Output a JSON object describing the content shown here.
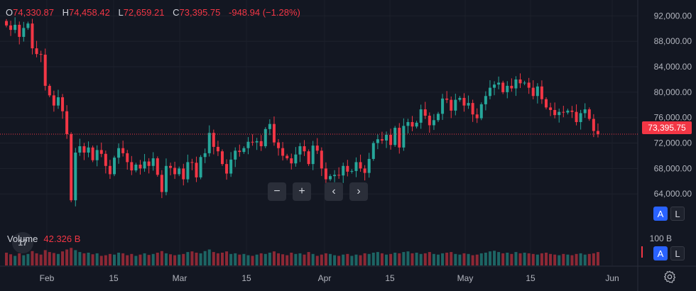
{
  "legend": {
    "o_label": "O",
    "o_value": "74,330.87",
    "h_label": "H",
    "h_value": "74,458.42",
    "l_label": "L",
    "l_value": "72,659.21",
    "c_label": "C",
    "c_value": "73,395.75",
    "change": "-948.94 (−1.28%)"
  },
  "volume_legend": {
    "label": "Volume",
    "value": "42.326 B"
  },
  "last_price": "73,395.75",
  "volume_axis_label": "100 B",
  "nav": {
    "zoom_out": "−",
    "zoom_in": "+",
    "scroll_left": "‹",
    "scroll_right": "›"
  },
  "scale_buttons": {
    "auto": "A",
    "log": "L"
  },
  "logo_text": "17",
  "icons": {
    "settings": "gear-icon"
  },
  "colors": {
    "up": "#26a69a",
    "down": "#f23645",
    "background": "#131722"
  },
  "chart_data": {
    "type": "candlestick",
    "y_ticks": [
      "92,000.00",
      "88,000.00",
      "84,000.00",
      "80,000.00",
      "76,000.00",
      "72,000.00",
      "68,000.00",
      "64,000.00"
    ],
    "y_tick_values": [
      92000,
      88000,
      84000,
      80000,
      76000,
      72000,
      68000,
      64000
    ],
    "x_ticks": [
      "Feb",
      "15",
      "Mar",
      "15",
      "Apr",
      "15",
      "May",
      "15",
      "Jun"
    ],
    "ylim": [
      59000,
      94500
    ],
    "last_price_value": 73395.75,
    "candles": [
      [
        91200,
        90500
      ],
      [
        90500,
        89800
      ],
      [
        89800,
        90600
      ],
      [
        90600,
        88700
      ],
      [
        88700,
        90100
      ],
      [
        90100,
        90800
      ],
      [
        90800,
        86900
      ],
      [
        86900,
        86000
      ],
      [
        86000,
        85900
      ],
      [
        85900,
        81000
      ],
      [
        81000,
        79500
      ],
      [
        79500,
        77900
      ],
      [
        77900,
        79200
      ],
      [
        79200,
        77000
      ],
      [
        77000,
        73400
      ],
      [
        73400,
        63000
      ],
      [
        63000,
        70500
      ],
      [
        70500,
        71500
      ],
      [
        71500,
        70500
      ],
      [
        70500,
        71300
      ],
      [
        71300,
        69300
      ],
      [
        69300,
        70900
      ],
      [
        70900,
        70300
      ],
      [
        70300,
        68400
      ],
      [
        68400,
        67100
      ],
      [
        67100,
        69700
      ],
      [
        69700,
        71200
      ],
      [
        71200,
        70400
      ],
      [
        70400,
        69000
      ],
      [
        69000,
        67700
      ],
      [
        67700,
        68600
      ],
      [
        68600,
        68000
      ],
      [
        68000,
        69100
      ],
      [
        69100,
        68400
      ],
      [
        68400,
        69600
      ],
      [
        69600,
        67000
      ],
      [
        67000,
        64300
      ],
      [
        64300,
        68400
      ],
      [
        68400,
        68100
      ],
      [
        68100,
        67100
      ],
      [
        67100,
        68000
      ],
      [
        68000,
        66300
      ],
      [
        66300,
        69000
      ],
      [
        69000,
        68900
      ],
      [
        68900,
        66600
      ],
      [
        66600,
        69800
      ],
      [
        69800,
        70400
      ],
      [
        70400,
        73600
      ],
      [
        73600,
        71400
      ],
      [
        71400,
        70700
      ],
      [
        70700,
        68700
      ],
      [
        68700,
        67200
      ],
      [
        67200,
        69400
      ],
      [
        69400,
        70800
      ],
      [
        70800,
        70600
      ],
      [
        70600,
        71200
      ],
      [
        71200,
        72200
      ],
      [
        72200,
        72100
      ],
      [
        72100,
        72300
      ],
      [
        72300,
        71500
      ],
      [
        71500,
        74200
      ],
      [
        74200,
        75000
      ],
      [
        75000,
        72100
      ],
      [
        72100,
        71200
      ],
      [
        71200,
        70000
      ],
      [
        70000,
        69600
      ],
      [
        69600,
        68800
      ],
      [
        68800,
        70200
      ],
      [
        70200,
        71500
      ],
      [
        71500,
        70700
      ],
      [
        70700,
        68700
      ],
      [
        68700,
        71600
      ],
      [
        71600,
        70800
      ],
      [
        70800,
        68000
      ],
      [
        68000,
        66300
      ],
      [
        66300,
        66800
      ],
      [
        66800,
        67000
      ],
      [
        67000,
        66900
      ],
      [
        66900,
        68400
      ],
      [
        68400,
        67500
      ],
      [
        67500,
        67600
      ],
      [
        67600,
        69000
      ],
      [
        69000,
        68000
      ],
      [
        68000,
        67300
      ],
      [
        67300,
        69500
      ],
      [
        69500,
        72000
      ],
      [
        72000,
        72600
      ],
      [
        72600,
        72400
      ],
      [
        72400,
        73300
      ],
      [
        73300,
        71700
      ],
      [
        71700,
        74400
      ],
      [
        74400,
        71300
      ],
      [
        71300,
        74700
      ],
      [
        74700,
        75300
      ],
      [
        75300,
        74600
      ],
      [
        74600,
        75200
      ],
      [
        75200,
        77300
      ],
      [
        77300,
        76300
      ],
      [
        76300,
        74800
      ],
      [
        74800,
        75600
      ],
      [
        75600,
        76600
      ],
      [
        76600,
        79000
      ],
      [
        79000,
        78800
      ],
      [
        78800,
        77100
      ],
      [
        77100,
        78800
      ],
      [
        78800,
        79100
      ],
      [
        79100,
        77900
      ],
      [
        77900,
        78300
      ],
      [
        78300,
        76500
      ],
      [
        76500,
        75900
      ],
      [
        75900,
        78100
      ],
      [
        78100,
        79400
      ],
      [
        79400,
        80700
      ],
      [
        80700,
        81200
      ],
      [
        81200,
        81500
      ],
      [
        81500,
        80000
      ],
      [
        80000,
        81000
      ],
      [
        81000,
        80600
      ],
      [
        80600,
        82000
      ],
      [
        82000,
        81400
      ],
      [
        81400,
        81500
      ],
      [
        81500,
        80700
      ],
      [
        80700,
        79400
      ],
      [
        79400,
        80900
      ],
      [
        80900,
        78900
      ],
      [
        78900,
        77600
      ],
      [
        77600,
        77200
      ],
      [
        77200,
        76400
      ],
      [
        76400,
        76900
      ],
      [
        76900,
        76800
      ],
      [
        76800,
        77100
      ],
      [
        77100,
        76900
      ],
      [
        76900,
        75300
      ],
      [
        75300,
        76700
      ],
      [
        76700,
        77300
      ],
      [
        77300,
        75800
      ],
      [
        75800,
        73900
      ],
      [
        73900,
        73400
      ]
    ],
    "volume_axis_max": 100,
    "volumes": [
      40,
      35,
      30,
      38,
      32,
      36,
      45,
      38,
      34,
      48,
      42,
      39,
      36,
      44,
      50,
      55,
      48,
      42,
      38,
      40,
      35,
      38,
      30,
      32,
      36,
      34,
      40,
      38,
      32,
      36,
      30,
      34,
      38,
      33,
      36,
      40,
      45,
      38,
      35,
      32,
      34,
      36,
      42,
      44,
      40,
      38,
      45,
      50,
      42,
      38,
      40,
      44,
      36,
      38,
      34,
      36,
      32,
      30,
      34,
      38,
      36,
      40,
      44,
      38,
      35,
      32,
      40,
      36,
      38,
      34,
      42,
      36,
      30,
      34,
      38,
      36,
      32,
      30,
      34,
      36,
      30,
      34,
      32,
      38,
      36,
      40,
      42,
      38,
      34,
      36,
      40,
      38,
      42,
      44,
      38,
      40,
      36,
      38,
      42,
      36,
      34,
      38,
      40,
      42,
      36,
      34,
      38,
      36,
      32,
      34,
      38,
      40,
      44,
      46,
      42,
      38,
      40,
      36,
      42,
      38,
      40,
      38,
      36,
      34,
      38,
      40,
      36,
      34,
      32,
      36,
      34,
      32,
      36,
      38,
      34,
      36,
      38,
      42
    ]
  }
}
